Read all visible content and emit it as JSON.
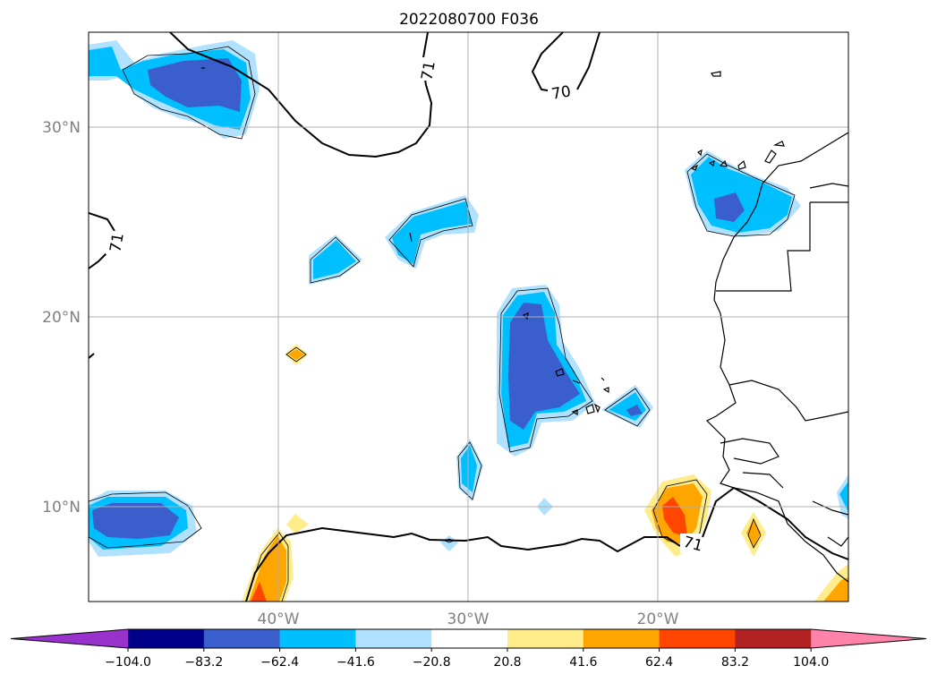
{
  "title": "2022080700 F036",
  "lat_labels": [
    "30°N",
    "20°N",
    "10°N"
  ],
  "lon_labels": [
    "40°W",
    "30°W",
    "20°W"
  ],
  "contour_labels": [
    "71",
    "70",
    "71",
    "71"
  ],
  "colorbar": {
    "tick_labels": [
      "−104.0",
      "−83.2",
      "−62.4",
      "−41.6",
      "−20.8",
      "20.8",
      "41.6",
      "62.4",
      "83.2",
      "104.0"
    ],
    "colors": [
      "#9932cc",
      "#00008b",
      "#3a5fcd",
      "#00bfff",
      "#b0e2ff",
      "#ffffff",
      "#ffec8b",
      "#ffa500",
      "#ff4500",
      "#b22222",
      "#ff82ab"
    ]
  }
}
